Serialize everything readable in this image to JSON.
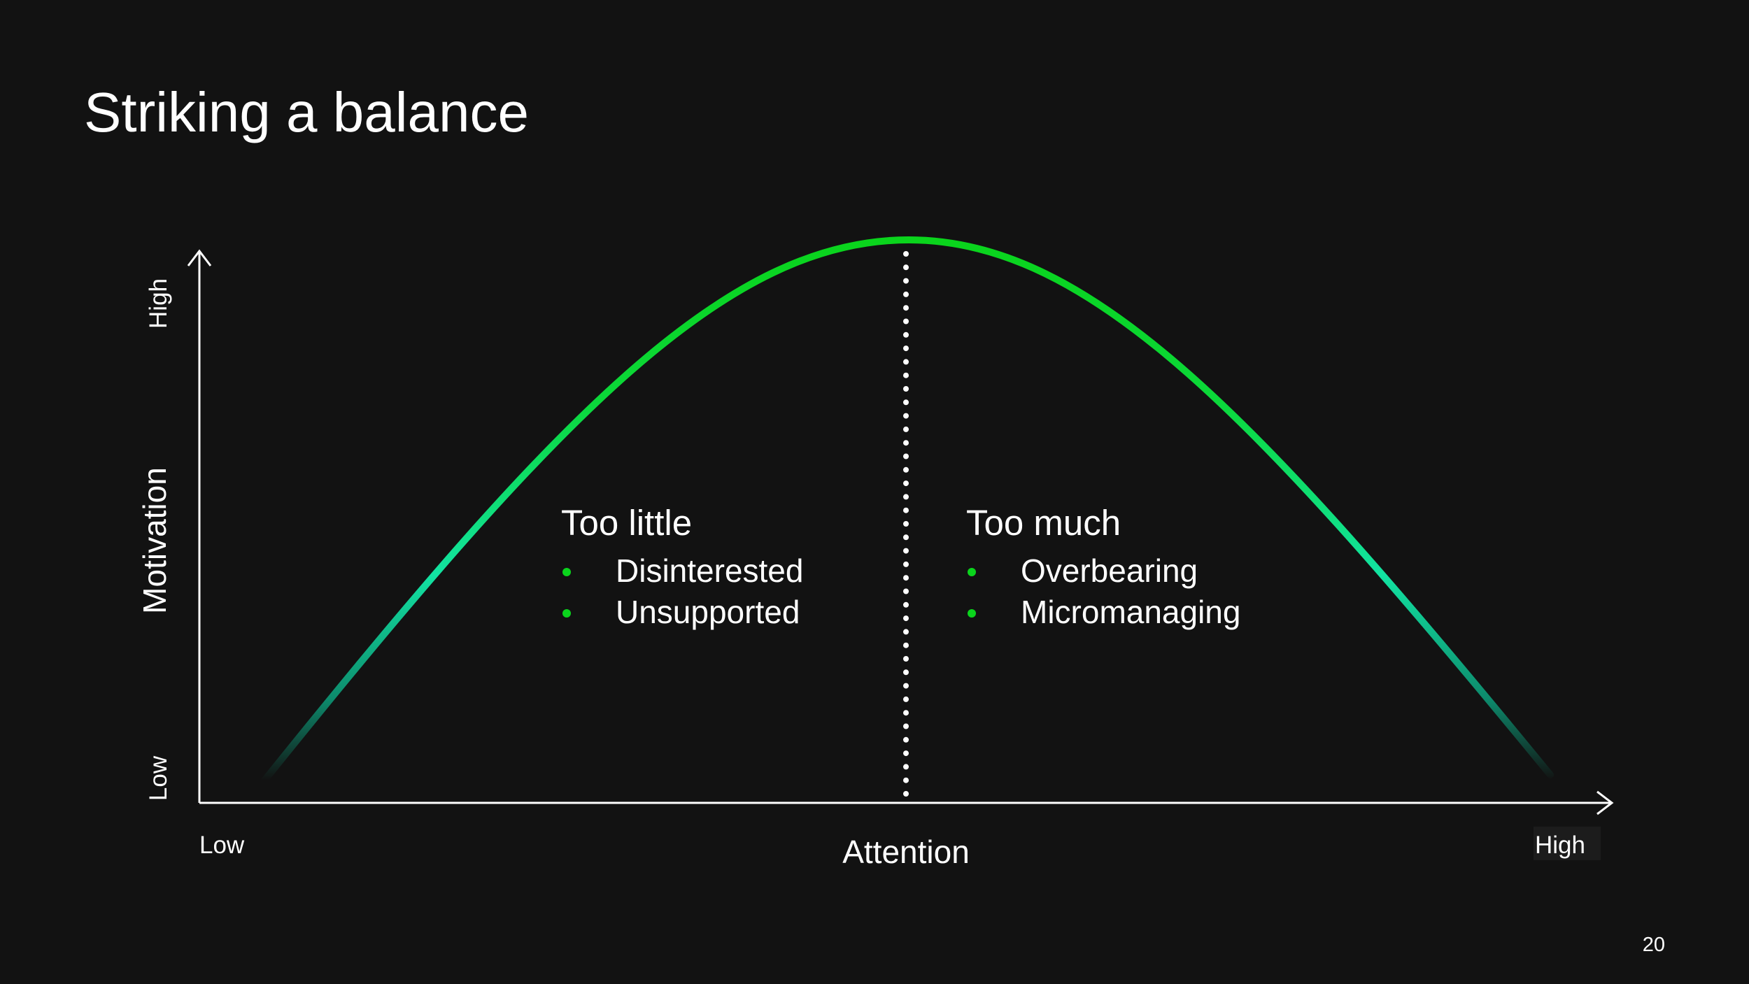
{
  "header": {
    "title": "Striking a balance"
  },
  "y_axis": {
    "label": "Motivation",
    "high": "High",
    "low": "Low"
  },
  "x_axis": {
    "label": "Attention",
    "low": "Low",
    "high": "High"
  },
  "sections": [
    {
      "heading": "Too little",
      "bullets": [
        "Disinterested",
        "Unsupported"
      ]
    },
    {
      "heading": "Too much",
      "bullets": [
        "Overbearing",
        "Micromanaging"
      ]
    }
  ],
  "footer": {
    "page_number": "20"
  }
}
